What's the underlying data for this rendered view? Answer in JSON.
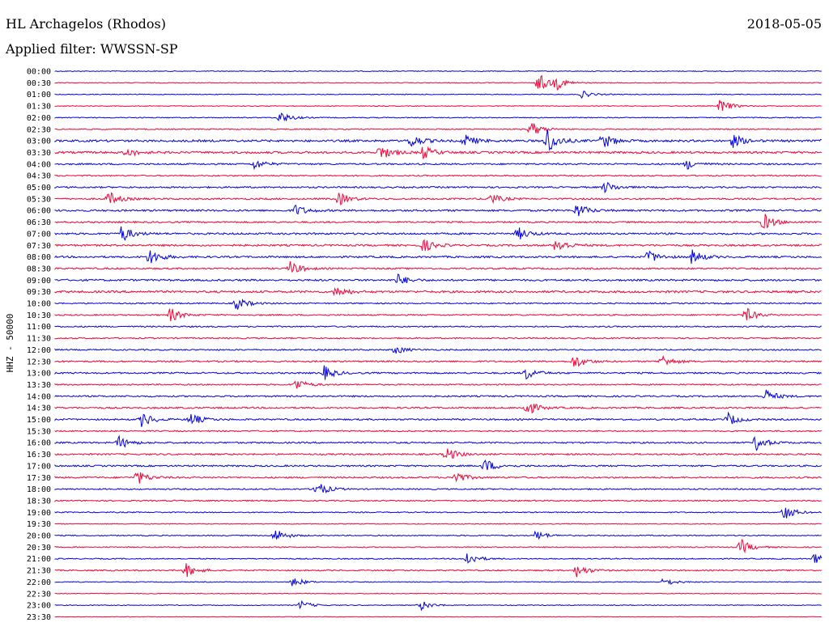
{
  "header": {
    "station": "HL Archagelos (Rhodos)",
    "date": "2018-05-05",
    "filter": "Applied filter: WWSSN-SP"
  },
  "colors": {
    "trace_a": "#0000ee",
    "trace_b": "#ff0033",
    "background": "#ffffff",
    "text": "#000000"
  },
  "chart_data": {
    "type": "line",
    "title": "HL Archagelos (Rhodos)",
    "subtitle": "Applied filter: WWSSN-SP",
    "ylabel": "HHZ - 50000",
    "xlabel": "",
    "grid": false,
    "legend": "none",
    "rows": [
      "00:00",
      "00:30",
      "01:00",
      "01:30",
      "02:00",
      "02:30",
      "03:00",
      "03:30",
      "04:00",
      "04:30",
      "05:00",
      "05:30",
      "06:00",
      "06:30",
      "07:00",
      "07:30",
      "08:00",
      "08:30",
      "09:00",
      "09:30",
      "10:00",
      "10:30",
      "11:00",
      "11:30",
      "12:00",
      "12:30",
      "13:00",
      "13:30",
      "14:00",
      "14:30",
      "15:00",
      "15:30",
      "16:00",
      "16:30",
      "17:00",
      "17:30",
      "18:00",
      "18:30",
      "19:00",
      "19:30",
      "20:00",
      "20:30",
      "21:00",
      "21:30",
      "22:00",
      "22:30",
      "23:00",
      "23:30"
    ],
    "row_noise_level": [
      0.3,
      0.3,
      0.3,
      0.3,
      0.35,
      0.4,
      0.8,
      0.8,
      0.6,
      0.5,
      0.6,
      0.6,
      0.7,
      0.6,
      0.7,
      0.7,
      0.7,
      0.6,
      0.7,
      0.8,
      0.5,
      0.5,
      0.5,
      0.5,
      0.5,
      0.6,
      0.6,
      0.5,
      0.6,
      0.6,
      0.6,
      0.5,
      0.6,
      0.6,
      0.6,
      0.6,
      0.5,
      0.5,
      0.4,
      0.3,
      0.4,
      0.4,
      0.4,
      0.5,
      0.3,
      0.3,
      0.3,
      0.2
    ],
    "events": [
      {
        "row": 1,
        "minute": 18.9,
        "amplitude": 1.4
      },
      {
        "row": 1,
        "minute": 19.6,
        "amplitude": 0.8
      },
      {
        "row": 2,
        "minute": 20.6,
        "amplitude": 0.5
      },
      {
        "row": 3,
        "minute": 26.0,
        "amplitude": 1.0
      },
      {
        "row": 4,
        "minute": 8.8,
        "amplitude": 0.9
      },
      {
        "row": 5,
        "minute": 18.6,
        "amplitude": 1.1
      },
      {
        "row": 6,
        "minute": 13.9,
        "amplitude": 1.0
      },
      {
        "row": 6,
        "minute": 16.0,
        "amplitude": 0.9
      },
      {
        "row": 6,
        "minute": 19.2,
        "amplitude": 2.0
      },
      {
        "row": 6,
        "minute": 21.4,
        "amplitude": 1.1
      },
      {
        "row": 6,
        "minute": 26.5,
        "amplitude": 0.9
      },
      {
        "row": 6,
        "minute": 30.0,
        "amplitude": 1.0
      },
      {
        "row": 7,
        "minute": 12.7,
        "amplitude": 1.1
      },
      {
        "row": 7,
        "minute": 14.4,
        "amplitude": 0.9
      },
      {
        "row": 7,
        "minute": 2.8,
        "amplitude": 0.6
      },
      {
        "row": 8,
        "minute": 7.8,
        "amplitude": 0.7
      },
      {
        "row": 8,
        "minute": 24.7,
        "amplitude": 0.7
      },
      {
        "row": 10,
        "minute": 21.5,
        "amplitude": 0.8
      },
      {
        "row": 11,
        "minute": 2.1,
        "amplitude": 1.0
      },
      {
        "row": 11,
        "minute": 11.1,
        "amplitude": 0.9
      },
      {
        "row": 11,
        "minute": 17.0,
        "amplitude": 0.8
      },
      {
        "row": 12,
        "minute": 9.4,
        "amplitude": 0.8
      },
      {
        "row": 12,
        "minute": 20.4,
        "amplitude": 1.0
      },
      {
        "row": 13,
        "minute": 27.7,
        "amplitude": 1.2
      },
      {
        "row": 14,
        "minute": 2.6,
        "amplitude": 1.2
      },
      {
        "row": 14,
        "minute": 18.1,
        "amplitude": 0.9
      },
      {
        "row": 15,
        "minute": 14.4,
        "amplitude": 0.9
      },
      {
        "row": 15,
        "minute": 19.6,
        "amplitude": 1.1
      },
      {
        "row": 16,
        "minute": 3.7,
        "amplitude": 1.2
      },
      {
        "row": 16,
        "minute": 23.2,
        "amplitude": 0.9
      },
      {
        "row": 16,
        "minute": 24.9,
        "amplitude": 1.0
      },
      {
        "row": 17,
        "minute": 9.2,
        "amplitude": 1.0
      },
      {
        "row": 18,
        "minute": 13.4,
        "amplitude": 0.8
      },
      {
        "row": 19,
        "minute": 11.0,
        "amplitude": 0.8
      },
      {
        "row": 20,
        "minute": 7.1,
        "amplitude": 0.9
      },
      {
        "row": 21,
        "minute": 4.5,
        "amplitude": 1.0
      },
      {
        "row": 21,
        "minute": 27.0,
        "amplitude": 1.0
      },
      {
        "row": 24,
        "minute": 13.3,
        "amplitude": 0.6
      },
      {
        "row": 25,
        "minute": 20.3,
        "amplitude": 1.0
      },
      {
        "row": 25,
        "minute": 23.7,
        "amplitude": 0.9
      },
      {
        "row": 26,
        "minute": 10.5,
        "amplitude": 1.0
      },
      {
        "row": 26,
        "minute": 18.4,
        "amplitude": 0.9
      },
      {
        "row": 27,
        "minute": 9.4,
        "amplitude": 0.9
      },
      {
        "row": 28,
        "minute": 27.8,
        "amplitude": 0.9
      },
      {
        "row": 29,
        "minute": 18.4,
        "amplitude": 1.2
      },
      {
        "row": 30,
        "minute": 3.4,
        "amplitude": 1.1
      },
      {
        "row": 30,
        "minute": 5.3,
        "amplitude": 0.9
      },
      {
        "row": 30,
        "minute": 26.3,
        "amplitude": 0.9
      },
      {
        "row": 32,
        "minute": 2.5,
        "amplitude": 0.9
      },
      {
        "row": 32,
        "minute": 27.4,
        "amplitude": 1.1
      },
      {
        "row": 33,
        "minute": 15.3,
        "amplitude": 1.0
      },
      {
        "row": 34,
        "minute": 16.8,
        "amplitude": 1.0
      },
      {
        "row": 35,
        "minute": 3.2,
        "amplitude": 1.0
      },
      {
        "row": 35,
        "minute": 15.6,
        "amplitude": 1.0
      },
      {
        "row": 36,
        "minute": 10.2,
        "amplitude": 1.2
      },
      {
        "row": 38,
        "minute": 28.5,
        "amplitude": 1.1
      },
      {
        "row": 40,
        "minute": 8.6,
        "amplitude": 1.0
      },
      {
        "row": 40,
        "minute": 18.8,
        "amplitude": 0.7
      },
      {
        "row": 41,
        "minute": 26.8,
        "amplitude": 1.1
      },
      {
        "row": 42,
        "minute": 16.1,
        "amplitude": 1.0
      },
      {
        "row": 42,
        "minute": 29.7,
        "amplitude": 1.0
      },
      {
        "row": 43,
        "minute": 5.1,
        "amplitude": 1.0
      },
      {
        "row": 43,
        "minute": 20.4,
        "amplitude": 0.9
      },
      {
        "row": 44,
        "minute": 9.3,
        "amplitude": 0.7
      },
      {
        "row": 44,
        "minute": 23.8,
        "amplitude": 0.6
      },
      {
        "row": 46,
        "minute": 9.6,
        "amplitude": 0.6
      },
      {
        "row": 46,
        "minute": 14.3,
        "amplitude": 0.7
      }
    ]
  }
}
